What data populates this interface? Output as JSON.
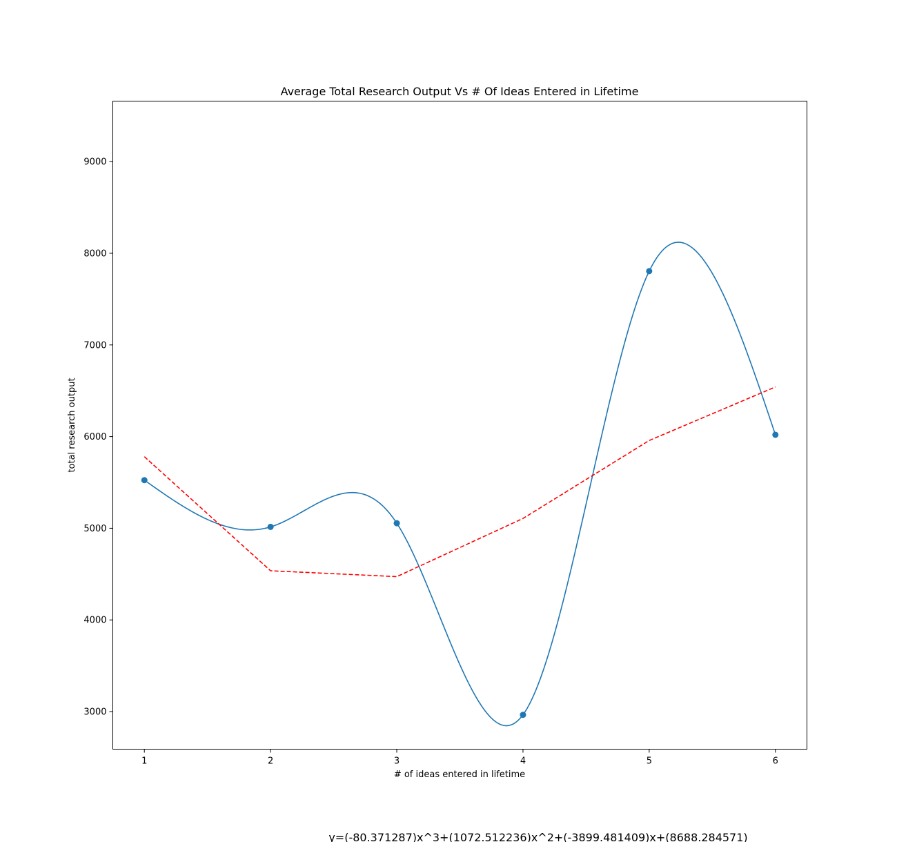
{
  "chart_data": {
    "type": "line",
    "title": "Average Total Research Output Vs # Of Ideas Entered in Lifetime",
    "xlabel": "# of ideas entered in lifetime",
    "ylabel": "total research output",
    "xlim": [
      0.75,
      6.25
    ],
    "ylim": [
      2590,
      9660
    ],
    "x_ticks": [
      1,
      2,
      3,
      4,
      5,
      6
    ],
    "y_ticks": [
      3000,
      4000,
      5000,
      6000,
      7000,
      8000,
      9000
    ],
    "grid": false,
    "points": {
      "x": [
        1,
        2,
        3,
        4,
        5,
        6
      ],
      "y": [
        5525,
        5015,
        5055,
        2965,
        7805,
        6020
      ],
      "color": "#1f77b4"
    },
    "smooth_curve": {
      "style": "solid",
      "color": "#1f77b4"
    },
    "fit_line": {
      "style": "dashed",
      "color": "#ff0000",
      "coefficients": [
        -80.371287,
        1072.512236,
        -3899.481409,
        8688.284571
      ]
    },
    "equation": "y=(-80.371287)x^3+(1072.512236)x^2+(-3899.481409)x+(8688.284571)"
  }
}
